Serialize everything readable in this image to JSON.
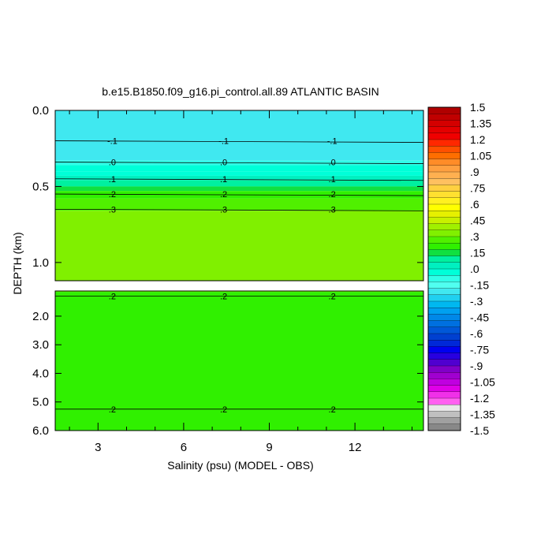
{
  "chart_data": {
    "type": "heatmap",
    "title": "b.e15.B1850.f09_g16.pi_control.all.89 ATLANTIC BASIN",
    "xlabel": "Salinity (psu) (MODEL - OBS)",
    "ylabel": "DEPTH (km)",
    "x_ticks": [
      "3",
      "6",
      "9",
      "12"
    ],
    "x_tick_values": [
      3,
      6,
      9,
      12
    ],
    "xlim": [
      1.5,
      14.4
    ],
    "upper_panel": {
      "ylim": [
        0.0,
        1.12
      ],
      "y_ticks": [
        "0.0",
        "0.5",
        "1.0"
      ],
      "y_tick_values": [
        0.0,
        0.5,
        1.0
      ]
    },
    "lower_panel": {
      "ylim": [
        1.12,
        6.0
      ],
      "y_ticks": [
        "2.0",
        "3.0",
        "4.0",
        "5.0",
        "6.0"
      ],
      "y_tick_values": [
        2.0,
        3.0,
        4.0,
        5.0,
        6.0
      ]
    },
    "contour_bands": [
      {
        "depth_top": 0.0,
        "depth_bottom": 0.33,
        "value": -0.2
      },
      {
        "depth_top": 0.33,
        "depth_bottom": 0.36,
        "value": -0.1
      },
      {
        "depth_top": 0.36,
        "depth_bottom": 0.4,
        "value": -0.05
      },
      {
        "depth_top": 0.4,
        "depth_bottom": 0.43,
        "value": 0.0
      },
      {
        "depth_top": 0.43,
        "depth_bottom": 0.46,
        "value": 0.05
      },
      {
        "depth_top": 0.46,
        "depth_bottom": 0.5,
        "value": 0.1
      },
      {
        "depth_top": 0.5,
        "depth_bottom": 0.53,
        "value": 0.15
      },
      {
        "depth_top": 0.53,
        "depth_bottom": 0.58,
        "value": 0.2
      },
      {
        "depth_top": 0.58,
        "depth_bottom": 0.66,
        "value": 0.25
      },
      {
        "depth_top": 0.66,
        "depth_bottom": 1.12,
        "value": 0.35
      },
      {
        "depth_top": 1.12,
        "depth_bottom": 1.15,
        "value": 0.35
      },
      {
        "depth_top": 1.15,
        "depth_bottom": 6.0,
        "value": 0.2
      }
    ],
    "contour_lines": [
      {
        "depth": 0.2,
        "label": "-.1"
      },
      {
        "depth": 0.34,
        "label": ".0"
      },
      {
        "depth": 0.45,
        "label": ".1"
      },
      {
        "depth": 0.55,
        "label": ".2"
      },
      {
        "depth": 0.65,
        "label": ".3"
      },
      {
        "depth": 1.3,
        "label": ".2"
      },
      {
        "depth": 5.25,
        "label": ".2"
      }
    ],
    "colorbar": {
      "labels": [
        "1.5",
        "1.35",
        "1.2",
        "1.05",
        ".9",
        ".75",
        ".6",
        ".45",
        ".3",
        ".15",
        ".0",
        "-.15",
        "-.3",
        "-.45",
        "-.6",
        "-.75",
        "-.9",
        "-1.05",
        "-1.2",
        "-1.35",
        "-1.5"
      ],
      "colors": [
        "#b00000",
        "#c00000",
        "#d40000",
        "#e40000",
        "#f00000",
        "#ff2800",
        "#ff5000",
        "#ff6e00",
        "#ff8c28",
        "#ffa040",
        "#ffb050",
        "#ffc060",
        "#ffd040",
        "#ffe030",
        "#fff020",
        "#ffff00",
        "#e6f000",
        "#c8f000",
        "#a0f000",
        "#80f000",
        "#50f000",
        "#30f000",
        "#10e040",
        "#00f0a0",
        "#00f0c0",
        "#00ffd8",
        "#30ffe8",
        "#50fff0",
        "#40e8f0",
        "#20d0f0",
        "#00b8f0",
        "#00a0f0",
        "#0088e8",
        "#0070e0",
        "#0058d8",
        "#0040d0",
        "#0028d8",
        "#0000f0",
        "#2800e0",
        "#5000d0",
        "#8000c8",
        "#a000d0",
        "#c000e0",
        "#e000e8",
        "#f030e8",
        "#ff60f0",
        "#e8e8e8",
        "#c0c0c0",
        "#a0a0a0",
        "#888888"
      ]
    },
    "colors": {
      "cyan_band": "#30ffe8",
      "green_band": "#50f000",
      "yellow_band": "#ffff00"
    }
  }
}
